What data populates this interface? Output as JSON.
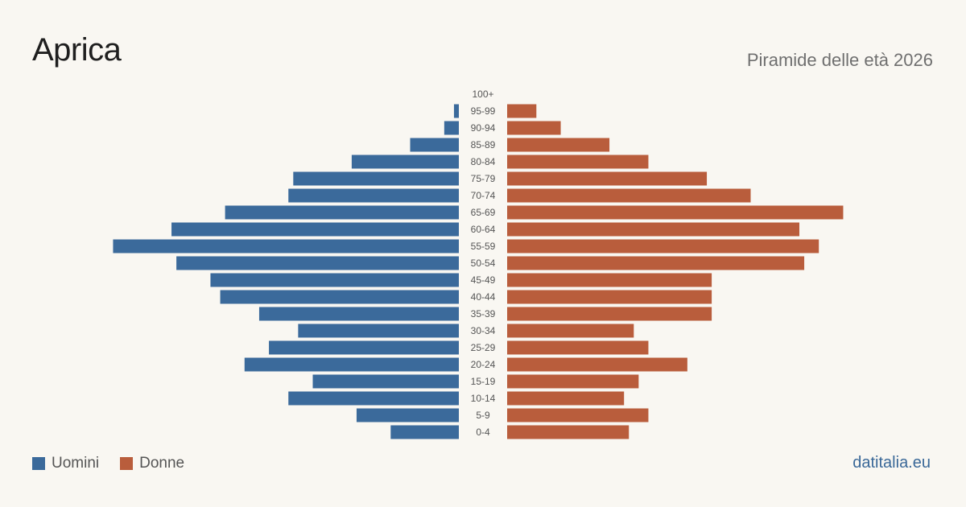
{
  "title": "Aprica",
  "subtitle": "Piramide delle età 2026",
  "brand": "datitalia.eu",
  "colors": {
    "men": "#3b6a9b",
    "women": "#b95d3c",
    "background": "#f9f7f2"
  },
  "legend": {
    "men_label": "Uomini",
    "women_label": "Donne"
  },
  "chart_data": {
    "type": "bar",
    "orientation": "horizontal-population-pyramid",
    "categories": [
      "100+",
      "95-99",
      "90-94",
      "85-89",
      "80-84",
      "75-79",
      "70-74",
      "65-69",
      "60-64",
      "55-59",
      "50-54",
      "45-49",
      "40-44",
      "35-39",
      "30-34",
      "25-29",
      "20-24",
      "15-19",
      "10-14",
      "5-9",
      "0-4"
    ],
    "series": [
      {
        "name": "Uomini",
        "side": "left",
        "values": [
          0,
          1,
          3,
          10,
          22,
          34,
          35,
          48,
          59,
          71,
          58,
          51,
          49,
          41,
          33,
          39,
          44,
          30,
          35,
          21,
          14
        ]
      },
      {
        "name": "Donne",
        "side": "right",
        "values": [
          0,
          6,
          11,
          21,
          29,
          41,
          50,
          69,
          60,
          64,
          61,
          42,
          42,
          42,
          26,
          29,
          37,
          27,
          24,
          29,
          25
        ]
      }
    ],
    "legend_position": "bottom-left",
    "grid": false
  }
}
